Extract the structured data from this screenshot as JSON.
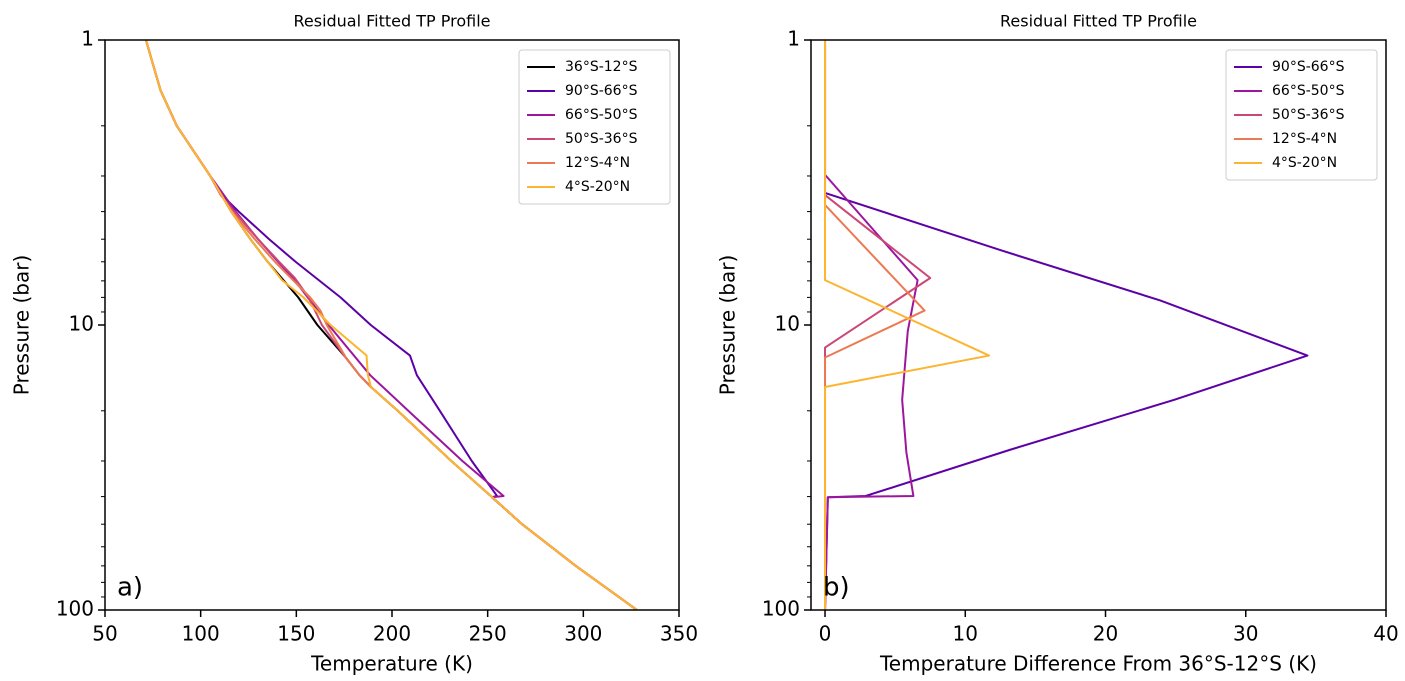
{
  "chart_data": [
    {
      "type": "line",
      "title": "Residual Fitted TP Profile",
      "xlabel": "Temperature (K)",
      "ylabel": "Pressure (bar)",
      "annotation": "a)",
      "xlim": [
        50,
        350
      ],
      "xticks": [
        50,
        100,
        150,
        200,
        250,
        300,
        350
      ],
      "ylim": [
        100,
        1
      ],
      "yscale": "log",
      "yticks": [
        1,
        10,
        100
      ],
      "yminorticks": [
        2,
        3,
        4,
        5,
        6,
        7,
        8,
        9,
        20,
        30,
        40,
        50,
        60,
        70,
        80,
        90
      ],
      "legend": "upper right",
      "series": [
        {
          "name": "36°S-12°S",
          "color": "#000000",
          "x": [
            71.4,
            79,
            87.5,
            105,
            116,
            126,
            135,
            151,
            161,
            175,
            183,
            189,
            203,
            231,
            252,
            268,
            296,
            328
          ],
          "y": [
            1,
            1.5,
            2,
            3,
            4,
            5,
            6,
            8,
            10,
            12.8,
            15,
            16.5,
            20,
            30,
            40,
            50,
            70,
            100
          ]
        },
        {
          "name": "90°S-66°S",
          "color": "#5c01a6",
          "x": [
            71.4,
            79,
            87.5,
            105,
            110,
            119.9,
            135.8,
            149.6,
            173.1,
            188.9,
            209.4,
            213,
            225,
            241.7,
            254.9,
            252.2,
            268,
            296,
            328
          ],
          "y": [
            1,
            1.5,
            2,
            3,
            3.44,
            4,
            5,
            6,
            8,
            10,
            12.8,
            15,
            20,
            30,
            39.8,
            40.2,
            50,
            70,
            100
          ]
        },
        {
          "name": "66°S-50°S",
          "color": "#9c179e",
          "x": [
            71.4,
            79,
            87.5,
            105,
            118.3,
            130,
            140.4,
            149.1,
            166.9,
            188.6,
            208.5,
            236.8,
            258.3,
            252.4,
            268,
            296,
            328
          ],
          "y": [
            1,
            1.5,
            2,
            3,
            4,
            5,
            6,
            6.96,
            10,
            15,
            20,
            30,
            39.8,
            40.2,
            50,
            70,
            100
          ]
        },
        {
          "name": "50°S-36°S",
          "color": "#cc4778",
          "x": [
            71.4,
            79,
            87.5,
            105,
            110.5,
            117.5,
            130,
            141,
            149.2,
            156.4,
            163.4,
            172,
            175,
            183,
            189,
            203,
            231,
            252,
            268,
            296,
            328
          ],
          "y": [
            1,
            1.5,
            2,
            3,
            3.5,
            4,
            5,
            6,
            6.84,
            8,
            10,
            12,
            12.8,
            15,
            16.5,
            20,
            30,
            40,
            50,
            70,
            100
          ]
        },
        {
          "name": "12°S-4°N",
          "color": "#ed7953",
          "x": [
            71.4,
            79,
            87.5,
            105,
            114,
            116.4,
            128.3,
            138.8,
            157.2,
            162.6,
            165.9,
            175.3,
            175.7,
            183,
            189,
            203,
            231,
            252,
            268,
            296,
            328
          ],
          "y": [
            1,
            1.5,
            2,
            3,
            3.79,
            4,
            5,
            6,
            8,
            8.9,
            10,
            12.8,
            13,
            15,
            16.5,
            20,
            30,
            40,
            50,
            70,
            100
          ]
        },
        {
          "name": "4°S-20°N",
          "color": "#fdb42f",
          "x": [
            71.4,
            79,
            87.5,
            105,
            116,
            126,
            135,
            142.5,
            153.7,
            167.9,
            186.7,
            187.4,
            189,
            203,
            231,
            252,
            268,
            296,
            328
          ],
          "y": [
            1,
            1.5,
            2,
            3,
            4,
            5,
            6,
            6.96,
            8,
            10,
            12.8,
            15,
            16.5,
            20,
            30,
            40,
            50,
            70,
            100
          ]
        }
      ]
    },
    {
      "type": "line",
      "title": "Residual Fitted TP Profile",
      "xlabel": "Temperature Difference From 36°S-12°S (K)",
      "ylabel": "Pressure (bar)",
      "annotation": "b)",
      "xlim": [
        -1,
        40
      ],
      "xticks": [
        0,
        10,
        20,
        30,
        40
      ],
      "ylim": [
        100,
        1
      ],
      "yscale": "log",
      "yticks": [
        1,
        10,
        100
      ],
      "yminorticks": [
        2,
        3,
        4,
        5,
        6,
        7,
        8,
        9,
        20,
        30,
        40,
        50,
        60,
        70,
        80,
        90
      ],
      "legend": "upper right",
      "series": [
        {
          "name": "90°S-66°S",
          "color": "#5c01a6",
          "x": [
            0,
            0,
            12.5,
            23.9,
            34.4,
            24.9,
            13.2,
            2.9,
            0.2,
            0
          ],
          "y": [
            1,
            3.44,
            5.46,
            8.2,
            12.8,
            18.3,
            27.4,
            39.8,
            40.2,
            100
          ]
        },
        {
          "name": "66°S-50°S",
          "color": "#9c179e",
          "x": [
            0,
            0,
            6.6,
            5.9,
            5.5,
            5.8,
            6.3,
            0.2,
            0
          ],
          "y": [
            1,
            2.97,
            6.96,
            10.5,
            18.3,
            28,
            39.8,
            40.2,
            100
          ]
        },
        {
          "name": "50°S-36°S",
          "color": "#cc4778",
          "x": [
            0,
            0,
            7.5,
            0,
            0
          ],
          "y": [
            1,
            3.5,
            6.84,
            12,
            100
          ]
        },
        {
          "name": "12°S-4°N",
          "color": "#ed7953",
          "x": [
            0,
            0,
            7.1,
            0,
            0
          ],
          "y": [
            1,
            3.79,
            8.9,
            13,
            100
          ]
        },
        {
          "name": "4°S-20°N",
          "color": "#fdb42f",
          "x": [
            0,
            0,
            11.7,
            0,
            0
          ],
          "y": [
            1,
            6.96,
            12.8,
            16.5,
            100
          ]
        }
      ]
    }
  ]
}
